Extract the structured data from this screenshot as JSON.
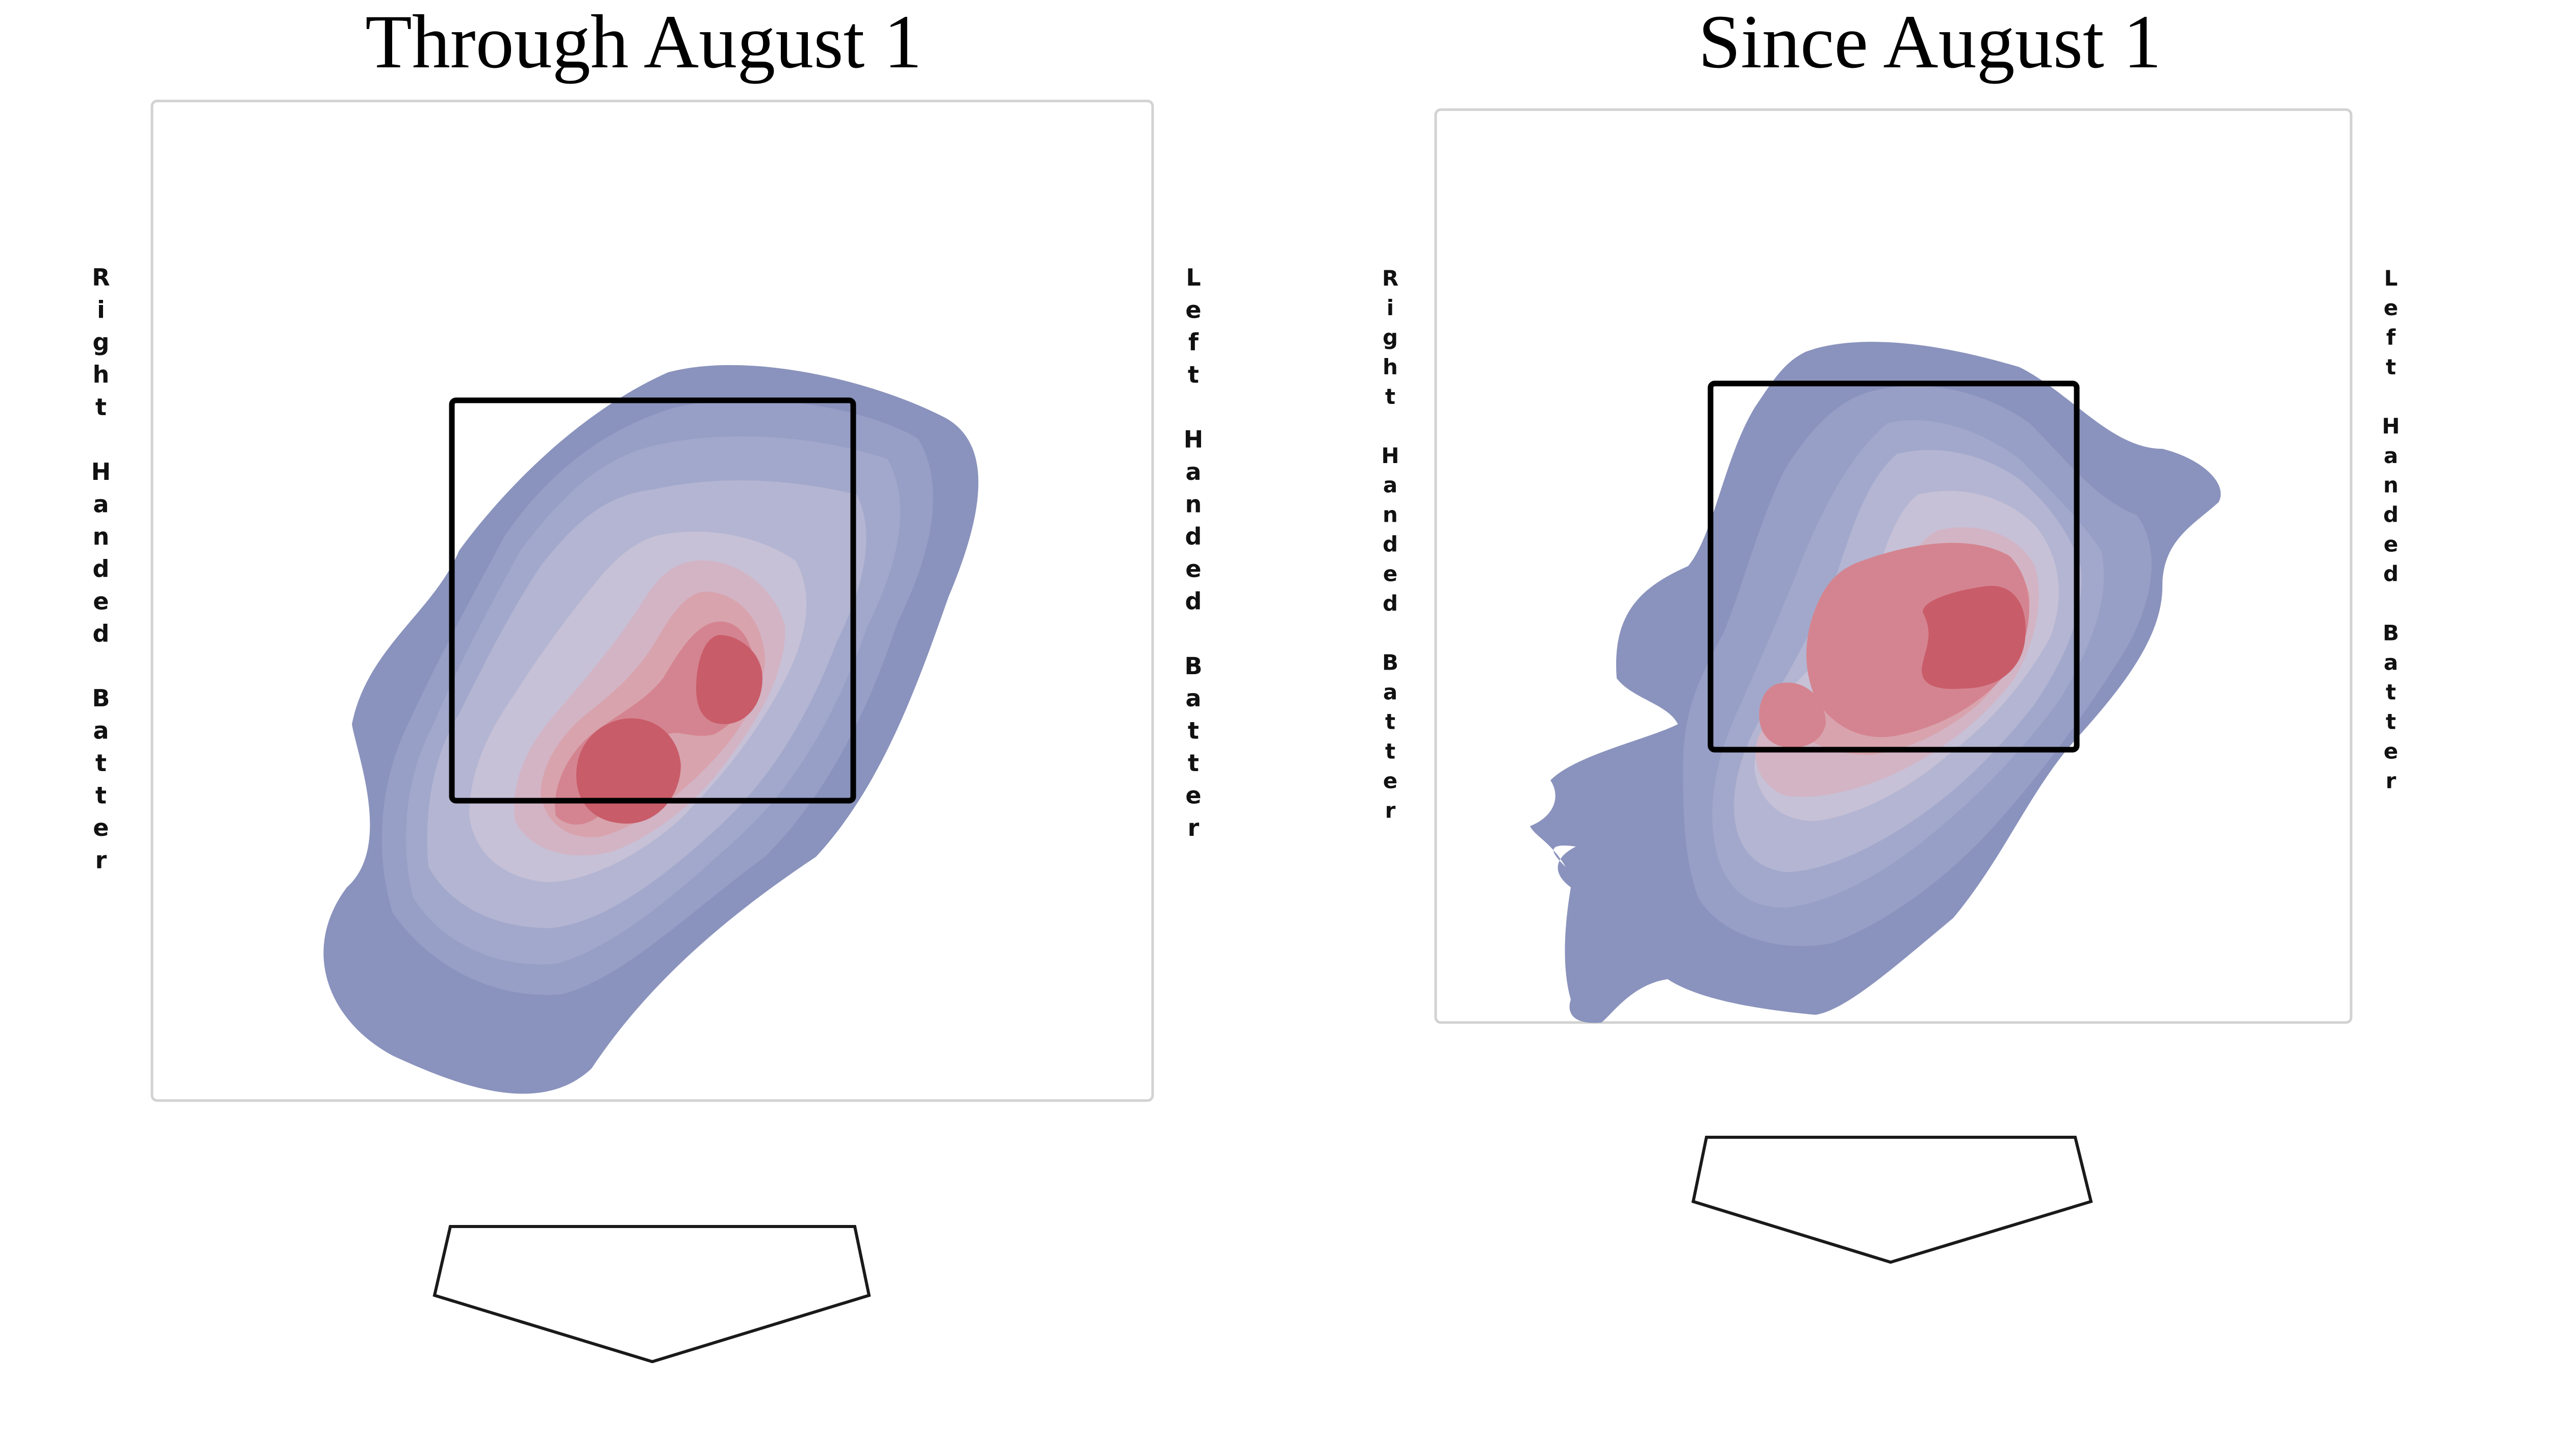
{
  "chart_data": [
    {
      "type": "heatmap",
      "subtype": "pitch-location-density-contour",
      "title": "Through August 1",
      "left_label": "Right Handed Batter",
      "right_label": "Left Handed Batter",
      "contour_levels": 9,
      "density_peaks": [
        {
          "label": "primary",
          "relative_density": 1.0
        },
        {
          "label": "secondary",
          "relative_density": 0.95
        }
      ],
      "grid": false,
      "colors": {
        "low_density": "#8a93bd",
        "high_density": "#c95c69",
        "strike_zone": "#000000",
        "plot_border": "#d2d2d2"
      }
    },
    {
      "type": "heatmap",
      "subtype": "pitch-location-density-contour",
      "title": "Since August 1",
      "left_label": "Right Handed Batter",
      "right_label": "Left Handed Batter",
      "contour_levels": 9,
      "density_peaks": [
        {
          "label": "primary",
          "relative_density": 1.0
        },
        {
          "label": "secondary",
          "relative_density": 0.7
        }
      ],
      "grid": false,
      "colors": {
        "low_density": "#8a93bd",
        "high_density": "#c95c69",
        "strike_zone": "#000000",
        "plot_border": "#d2d2d2"
      }
    }
  ]
}
